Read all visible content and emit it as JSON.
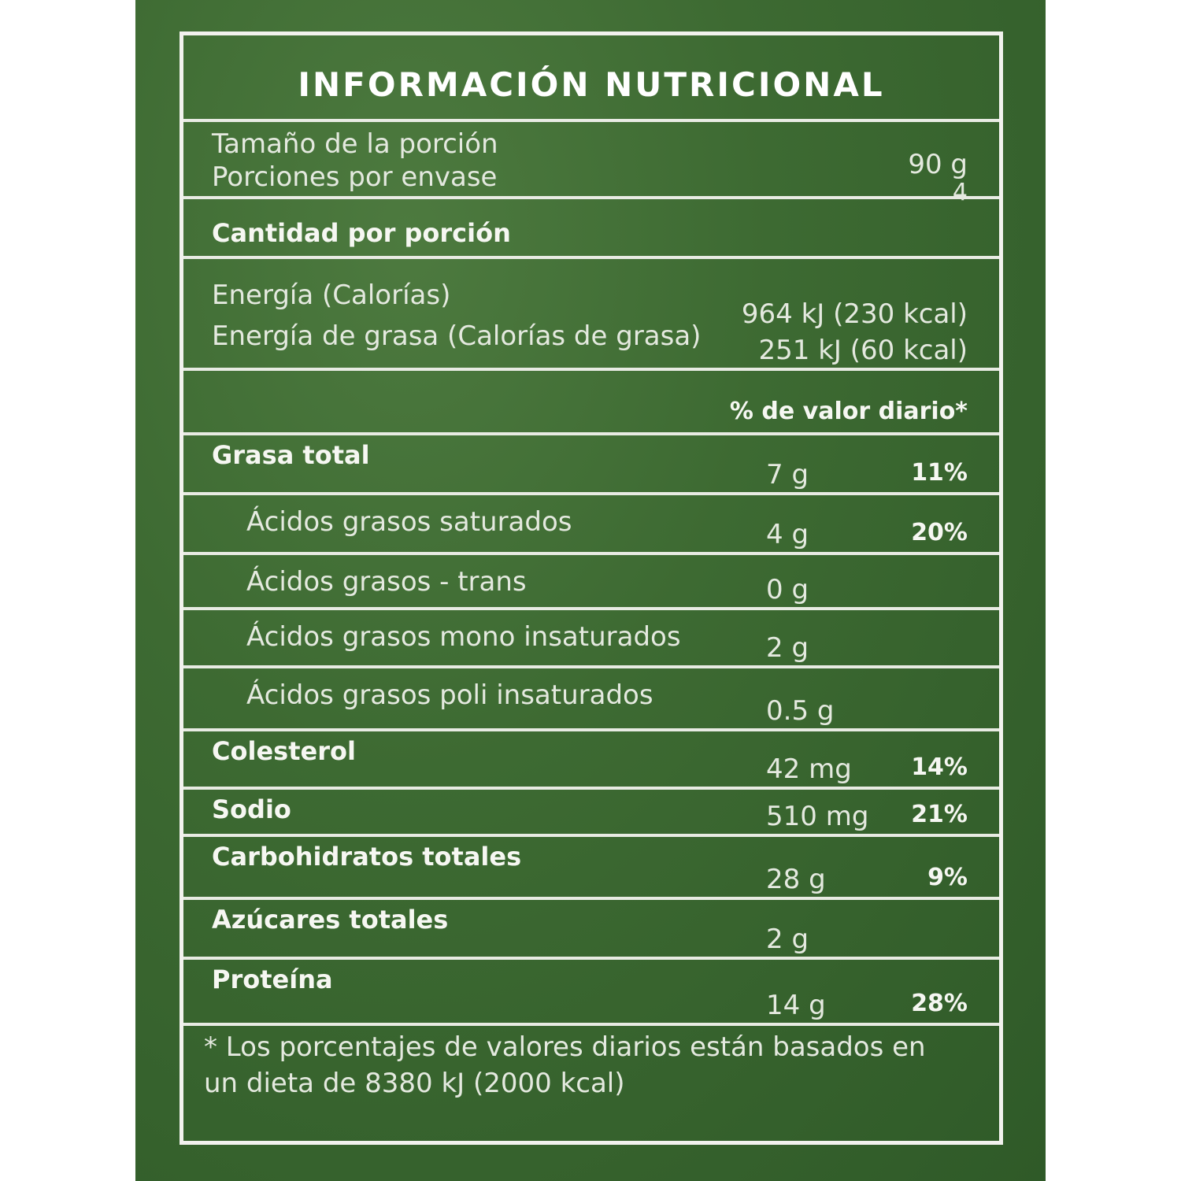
{
  "title": "INFORMACIÓN NUTRICIONAL",
  "serving": {
    "size_label": "Tamaño de la porción",
    "size_value": "90  g",
    "servings_label": "Porciones por envase",
    "servings_value": "4"
  },
  "amount_header": "Cantidad por porción",
  "energy": {
    "label": "Energía (Calorías)",
    "value": "964 kJ (230 kcal)",
    "fat_label": "Energía de grasa (Calorías de grasa)",
    "fat_value": "251 kJ (60 kcal)"
  },
  "dv_header": "% de valor diario*",
  "nutrients": [
    {
      "label": "Grasa total",
      "amount": "7 g",
      "dv": "11%"
    },
    {
      "label": "Ácidos grasos saturados",
      "amount": "4 g",
      "dv": "20%"
    },
    {
      "label": "Ácidos grasos - trans",
      "amount": "0 g",
      "dv": ""
    },
    {
      "label": "Ácidos grasos mono insaturados",
      "amount": "2 g",
      "dv": ""
    },
    {
      "label": "Ácidos grasos poli insaturados",
      "amount": "0.5 g",
      "dv": ""
    },
    {
      "label": "Colesterol",
      "amount": "42 mg",
      "dv": "14%"
    },
    {
      "label": "Sodio",
      "amount": "510 mg",
      "dv": "21%"
    },
    {
      "label": "Carbohidratos totales",
      "amount": "28 g",
      "dv": "9%"
    },
    {
      "label": "Azúcares totales",
      "amount": "2 g",
      "dv": ""
    },
    {
      "label": "Proteína",
      "amount": "14 g",
      "dv": "28%"
    }
  ],
  "footnote": "* Los porcentajes de valores diarios están basados en un dieta de 8380 kJ (2000 kcal)",
  "colors": {
    "background": "#3d6a32",
    "text": "#e9ede4"
  }
}
